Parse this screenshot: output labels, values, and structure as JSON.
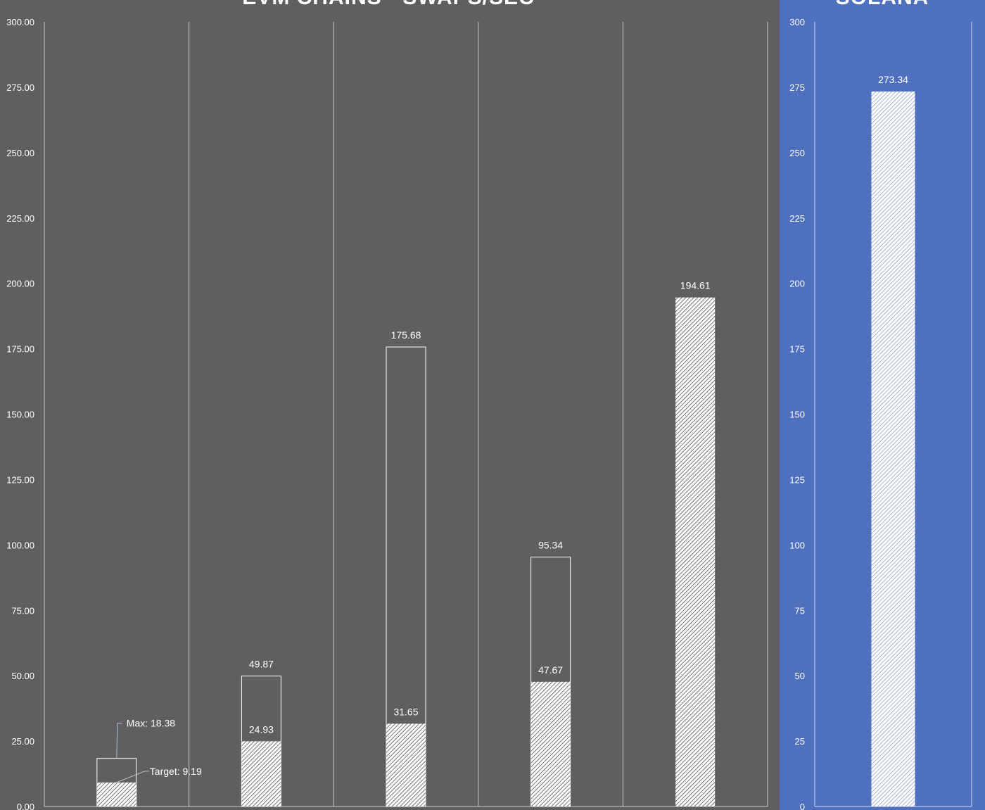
{
  "colors": {
    "left_bg": "#5f5f5f",
    "right_bg": "#4f70bf",
    "ink": "#ffffff"
  },
  "chart_data": [
    {
      "type": "bar",
      "title": "EVM CHAINS - SWAPS/SEC",
      "ylim": [
        0,
        300
      ],
      "yticks": [
        "0.00",
        "25.00",
        "50.00",
        "75.00",
        "100.00",
        "125.00",
        "150.00",
        "175.00",
        "200.00",
        "225.00",
        "250.00",
        "275.00",
        "300.00"
      ],
      "grid": "vertical",
      "categories": [
        "",
        "",
        "",
        "",
        ""
      ],
      "series": [
        {
          "style": "hatched",
          "values": [
            9.19,
            24.93,
            31.65,
            47.67,
            194.61
          ],
          "labels": [
            "",
            "24.93",
            "31.65",
            "47.67",
            "194.61"
          ]
        },
        {
          "style": "outline",
          "values": [
            18.38,
            49.87,
            175.68,
            95.34,
            null
          ],
          "labels": [
            "",
            "49.87",
            "175.68",
            "95.34",
            ""
          ]
        }
      ],
      "annotations": [
        {
          "category_index": 0,
          "value": 18.38,
          "text": "Max: 18.38"
        },
        {
          "category_index": 0,
          "value": 9.19,
          "text": "Target: 9.19"
        }
      ]
    },
    {
      "type": "bar",
      "title": "SOLANA",
      "ylim": [
        0,
        300
      ],
      "yticks": [
        "0",
        "25",
        "50",
        "75",
        "100",
        "125",
        "150",
        "175",
        "200",
        "225",
        "250",
        "275",
        "300"
      ],
      "categories": [
        ""
      ],
      "series": [
        {
          "style": "hatched",
          "values": [
            273.34
          ],
          "labels": [
            "273.34"
          ]
        }
      ]
    }
  ]
}
